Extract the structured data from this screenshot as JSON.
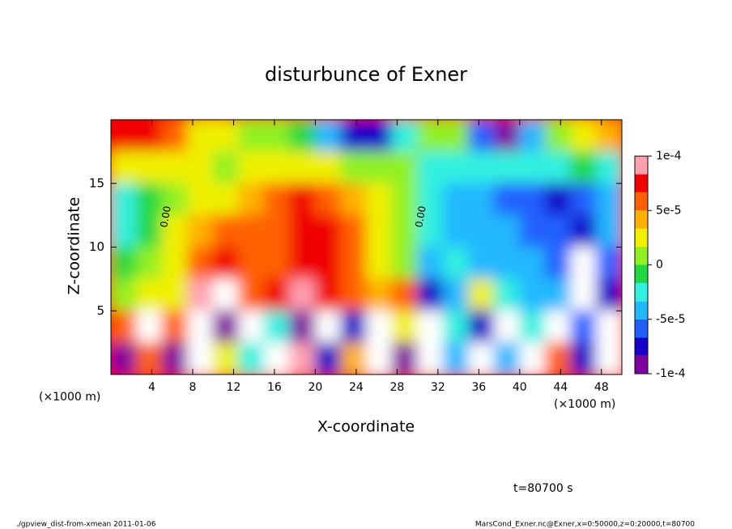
{
  "chart_data": {
    "type": "heatmap",
    "title": "disturbunce of Exner",
    "x_label": "X-coordinate",
    "y_label": "Z-coordinate",
    "x_unit": "(×1000 m)",
    "annotation": "t=80700 s",
    "footer_left": "./gpview_dist-from-xmean  2011-01-06",
    "footer_right": "MarsCond_Exner.nc@Exner,x=0:50000,z=0:20000,t=80700",
    "contour_labels": [
      "0.00",
      "0.00"
    ],
    "xlim": [
      0,
      50
    ],
    "xticks": [
      4,
      8,
      12,
      16,
      20,
      24,
      28,
      32,
      36,
      40,
      44,
      48
    ],
    "ylim": [
      0,
      20
    ],
    "yticks": [
      5,
      10,
      15
    ],
    "x": [
      1.25,
      3.75,
      6.25,
      8.75,
      11.25,
      13.75,
      16.25,
      18.75,
      21.25,
      23.75,
      26.25,
      28.75,
      31.25,
      33.75,
      36.25,
      38.75,
      41.25,
      43.75,
      46.25,
      48.75
    ],
    "z": [
      18.75,
      16.25,
      13.75,
      11.25,
      8.75,
      6.25,
      3.75,
      1.25
    ],
    "values": [
      [
        8e-05,
        7e-05,
        6e-05,
        3e-05,
        2e-05,
        1e-05,
        0,
        -1e-05,
        -5e-05,
        -7e-05,
        -7e-05,
        -3e-05,
        0,
        1e-05,
        -6e-05,
        -9e-05,
        -4e-05,
        1e-05,
        3e-05,
        4e-05
      ],
      [
        2e-05,
        3e-05,
        3e-05,
        2e-05,
        1e-05,
        2e-05,
        3e-05,
        3e-05,
        2e-05,
        1e-05,
        0,
        0,
        -2e-05,
        -3e-05,
        -3e-05,
        -3e-05,
        -2e-05,
        -2e-05,
        -1e-05,
        -3e-05
      ],
      [
        -3e-05,
        -1e-05,
        1e-05,
        3e-05,
        3e-05,
        4e-05,
        5e-05,
        7e-05,
        5e-05,
        4e-05,
        3e-05,
        1e-05,
        -3e-05,
        -4e-05,
        -5e-05,
        -6e-05,
        -6e-05,
        -7e-05,
        -6e-05,
        -4e-05
      ],
      [
        -3e-05,
        -1e-05,
        2e-05,
        4e-05,
        5e-05,
        5e-05,
        6e-05,
        8e-05,
        7e-05,
        5e-05,
        3e-05,
        0,
        -3e-05,
        -4e-05,
        -5e-05,
        -5e-05,
        -6e-05,
        -6e-05,
        -7e-05,
        -5e-05
      ],
      [
        -1e-05,
        1e-05,
        2e-05,
        5e-05,
        8e-05,
        6e-05,
        6e-05,
        7e-05,
        8e-05,
        6e-05,
        3e-05,
        1e-05,
        -4e-05,
        -3e-05,
        -4e-05,
        -5e-05,
        -5e-05,
        -6e-05,
        0.00012,
        -6e-05
      ],
      [
        1e-05,
        2e-05,
        3e-05,
        9e-05,
        0.00012,
        6e-05,
        8e-05,
        9e-05,
        7e-05,
        6e-05,
        4e-05,
        5e-05,
        -8e-05,
        -4e-05,
        3e-05,
        -3e-05,
        -4e-05,
        -5e-05,
        0.00012,
        -8e-05
      ],
      [
        5e-05,
        0.00012,
        6e-05,
        0.00012,
        -9e-05,
        0.00012,
        -2e-05,
        -0.0001,
        0.00011,
        -8e-05,
        0.00012,
        3e-05,
        0.00013,
        -2e-05,
        -8e-05,
        0.00013,
        -3e-05,
        0.00012,
        -6e-05,
        0.00013
      ],
      [
        -9e-05,
        6e-05,
        -9e-05,
        0.00012,
        2e-05,
        -3e-05,
        0.00012,
        9e-05,
        -8e-05,
        4e-05,
        0.00011,
        -9e-05,
        0.00012,
        -5e-05,
        0.00011,
        -4e-05,
        0.00012,
        6e-05,
        -7e-05,
        0.00012
      ]
    ],
    "colorbar_lim": [
      -0.0001,
      0.0001
    ],
    "colorbar_ticks": [
      {
        "value": 0.0001,
        "label": "1e-4"
      },
      {
        "value": 5e-05,
        "label": "5e-5"
      },
      0,
      {
        "value": -5e-05,
        "label": "-5e-5"
      },
      {
        "value": -0.0001,
        "label": "-1e-4"
      }
    ],
    "colorscale": [
      "#8000a0",
      "#1800c8",
      "#2060ff",
      "#20b8ff",
      "#30f0e0",
      "#20d840",
      "#90f020",
      "#f0f000",
      "#ffb000",
      "#ff6000",
      "#f00000",
      "#ffa0b0"
    ],
    "out_of_range_color": "#ffffff"
  }
}
